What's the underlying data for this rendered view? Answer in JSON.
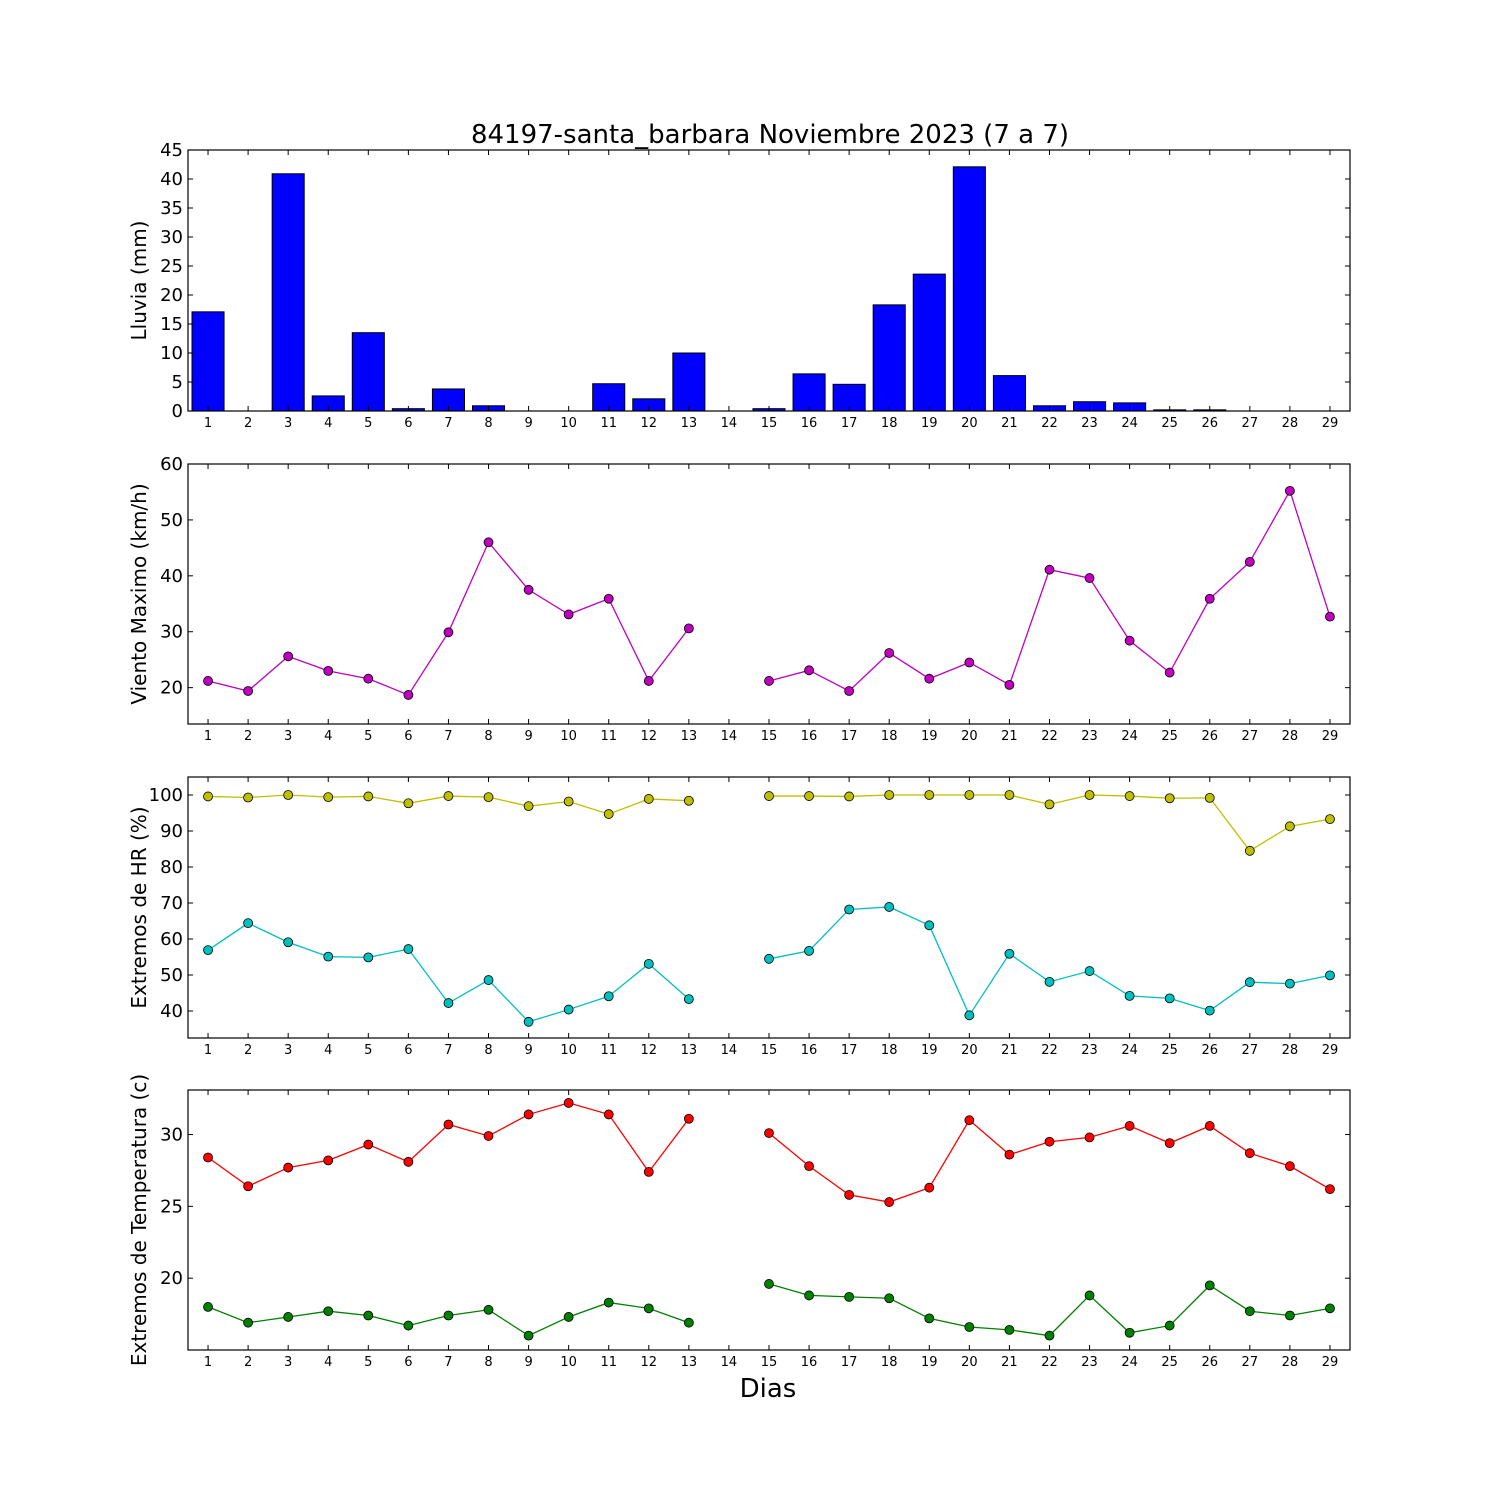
{
  "chart_data": {
    "title": "84197-santa_barbara Noviembre 2023  (7 a 7)",
    "xlabel": "Dias",
    "x": [
      1,
      2,
      3,
      4,
      5,
      6,
      7,
      8,
      9,
      10,
      11,
      12,
      13,
      14,
      15,
      16,
      17,
      18,
      19,
      20,
      21,
      22,
      23,
      24,
      25,
      26,
      27,
      28,
      29
    ],
    "panels": [
      {
        "type": "bar",
        "ylabel": "Lluvia (mm)",
        "ylim": [
          0,
          45
        ],
        "yticks": [
          0,
          5,
          10,
          15,
          20,
          25,
          30,
          35,
          40,
          45
        ],
        "series": [
          {
            "color": "#0000ff",
            "values": [
              17.1,
              0,
              40.9,
              2.6,
              13.5,
              0.4,
              3.8,
              0.9,
              0,
              0,
              4.7,
              2.1,
              10,
              null,
              0.4,
              6.4,
              4.6,
              18.3,
              23.6,
              42.1,
              6.1,
              0.9,
              1.6,
              1.4,
              0.2,
              0.2,
              0,
              0,
              0
            ]
          }
        ]
      },
      {
        "type": "line",
        "ylabel": "Viento Maximo (km/h)",
        "ylim": [
          13.5,
          60
        ],
        "yticks": [
          20,
          30,
          40,
          50,
          60
        ],
        "series": [
          {
            "color": "#bf00bf",
            "values": [
              21.2,
              19.4,
              25.6,
              23,
              21.6,
              18.7,
              29.9,
              46,
              37.5,
              33.1,
              35.9,
              21.2,
              30.6,
              null,
              21.2,
              23.1,
              19.4,
              26.2,
              21.6,
              24.5,
              20.5,
              41.1,
              39.6,
              28.4,
              22.7,
              35.9,
              42.5,
              55.2,
              32.7
            ]
          }
        ]
      },
      {
        "type": "line",
        "ylabel": "Extremos de HR (%)",
        "ylim": [
          32.5,
          105
        ],
        "yticks": [
          40,
          50,
          60,
          70,
          80,
          90,
          100
        ],
        "series": [
          {
            "color": "#bfbf00",
            "values": [
              99.6,
              99.3,
              100,
              99.4,
              99.6,
              97.7,
              99.7,
              99.4,
              96.9,
              98.2,
              94.7,
              98.9,
              98.4,
              null,
              99.7,
              99.7,
              99.6,
              100,
              100,
              100,
              100,
              97.4,
              100,
              99.7,
              99.1,
              99.2,
              84.5,
              91.3,
              93.3
            ]
          },
          {
            "color": "#00bfbf",
            "values": [
              56.9,
              64.4,
              59.1,
              55.1,
              54.9,
              57.2,
              42.2,
              48.6,
              37,
              40.4,
              44.1,
              53.1,
              43.3,
              null,
              54.5,
              56.7,
              68.2,
              68.9,
              63.8,
              38.8,
              55.9,
              48.1,
              51.1,
              44.2,
              43.5,
              40.1,
              48,
              47.6,
              49.9
            ]
          }
        ]
      },
      {
        "type": "line",
        "ylabel": "Extremos de Temperatura (c)",
        "ylim": [
          15,
          33.1
        ],
        "yticks": [
          20,
          25,
          30
        ],
        "series": [
          {
            "color": "#ff0000",
            "values": [
              28.4,
              26.4,
              27.7,
              28.2,
              29.3,
              28.1,
              30.7,
              29.9,
              31.4,
              32.2,
              31.4,
              27.4,
              31.1,
              null,
              30.1,
              27.8,
              25.8,
              25.3,
              26.3,
              31,
              28.6,
              29.5,
              29.8,
              30.6,
              29.4,
              30.6,
              28.7,
              27.8,
              26.2
            ]
          },
          {
            "color": "#008000",
            "values": [
              18,
              16.9,
              17.3,
              17.7,
              17.4,
              16.7,
              17.4,
              17.8,
              16,
              17.3,
              18.3,
              17.9,
              16.9,
              null,
              19.6,
              18.8,
              18.7,
              18.6,
              17.2,
              16.6,
              16.4,
              16,
              18.8,
              16.2,
              16.7,
              19.5,
              17.7,
              17.4,
              17.9
            ]
          }
        ]
      }
    ]
  }
}
